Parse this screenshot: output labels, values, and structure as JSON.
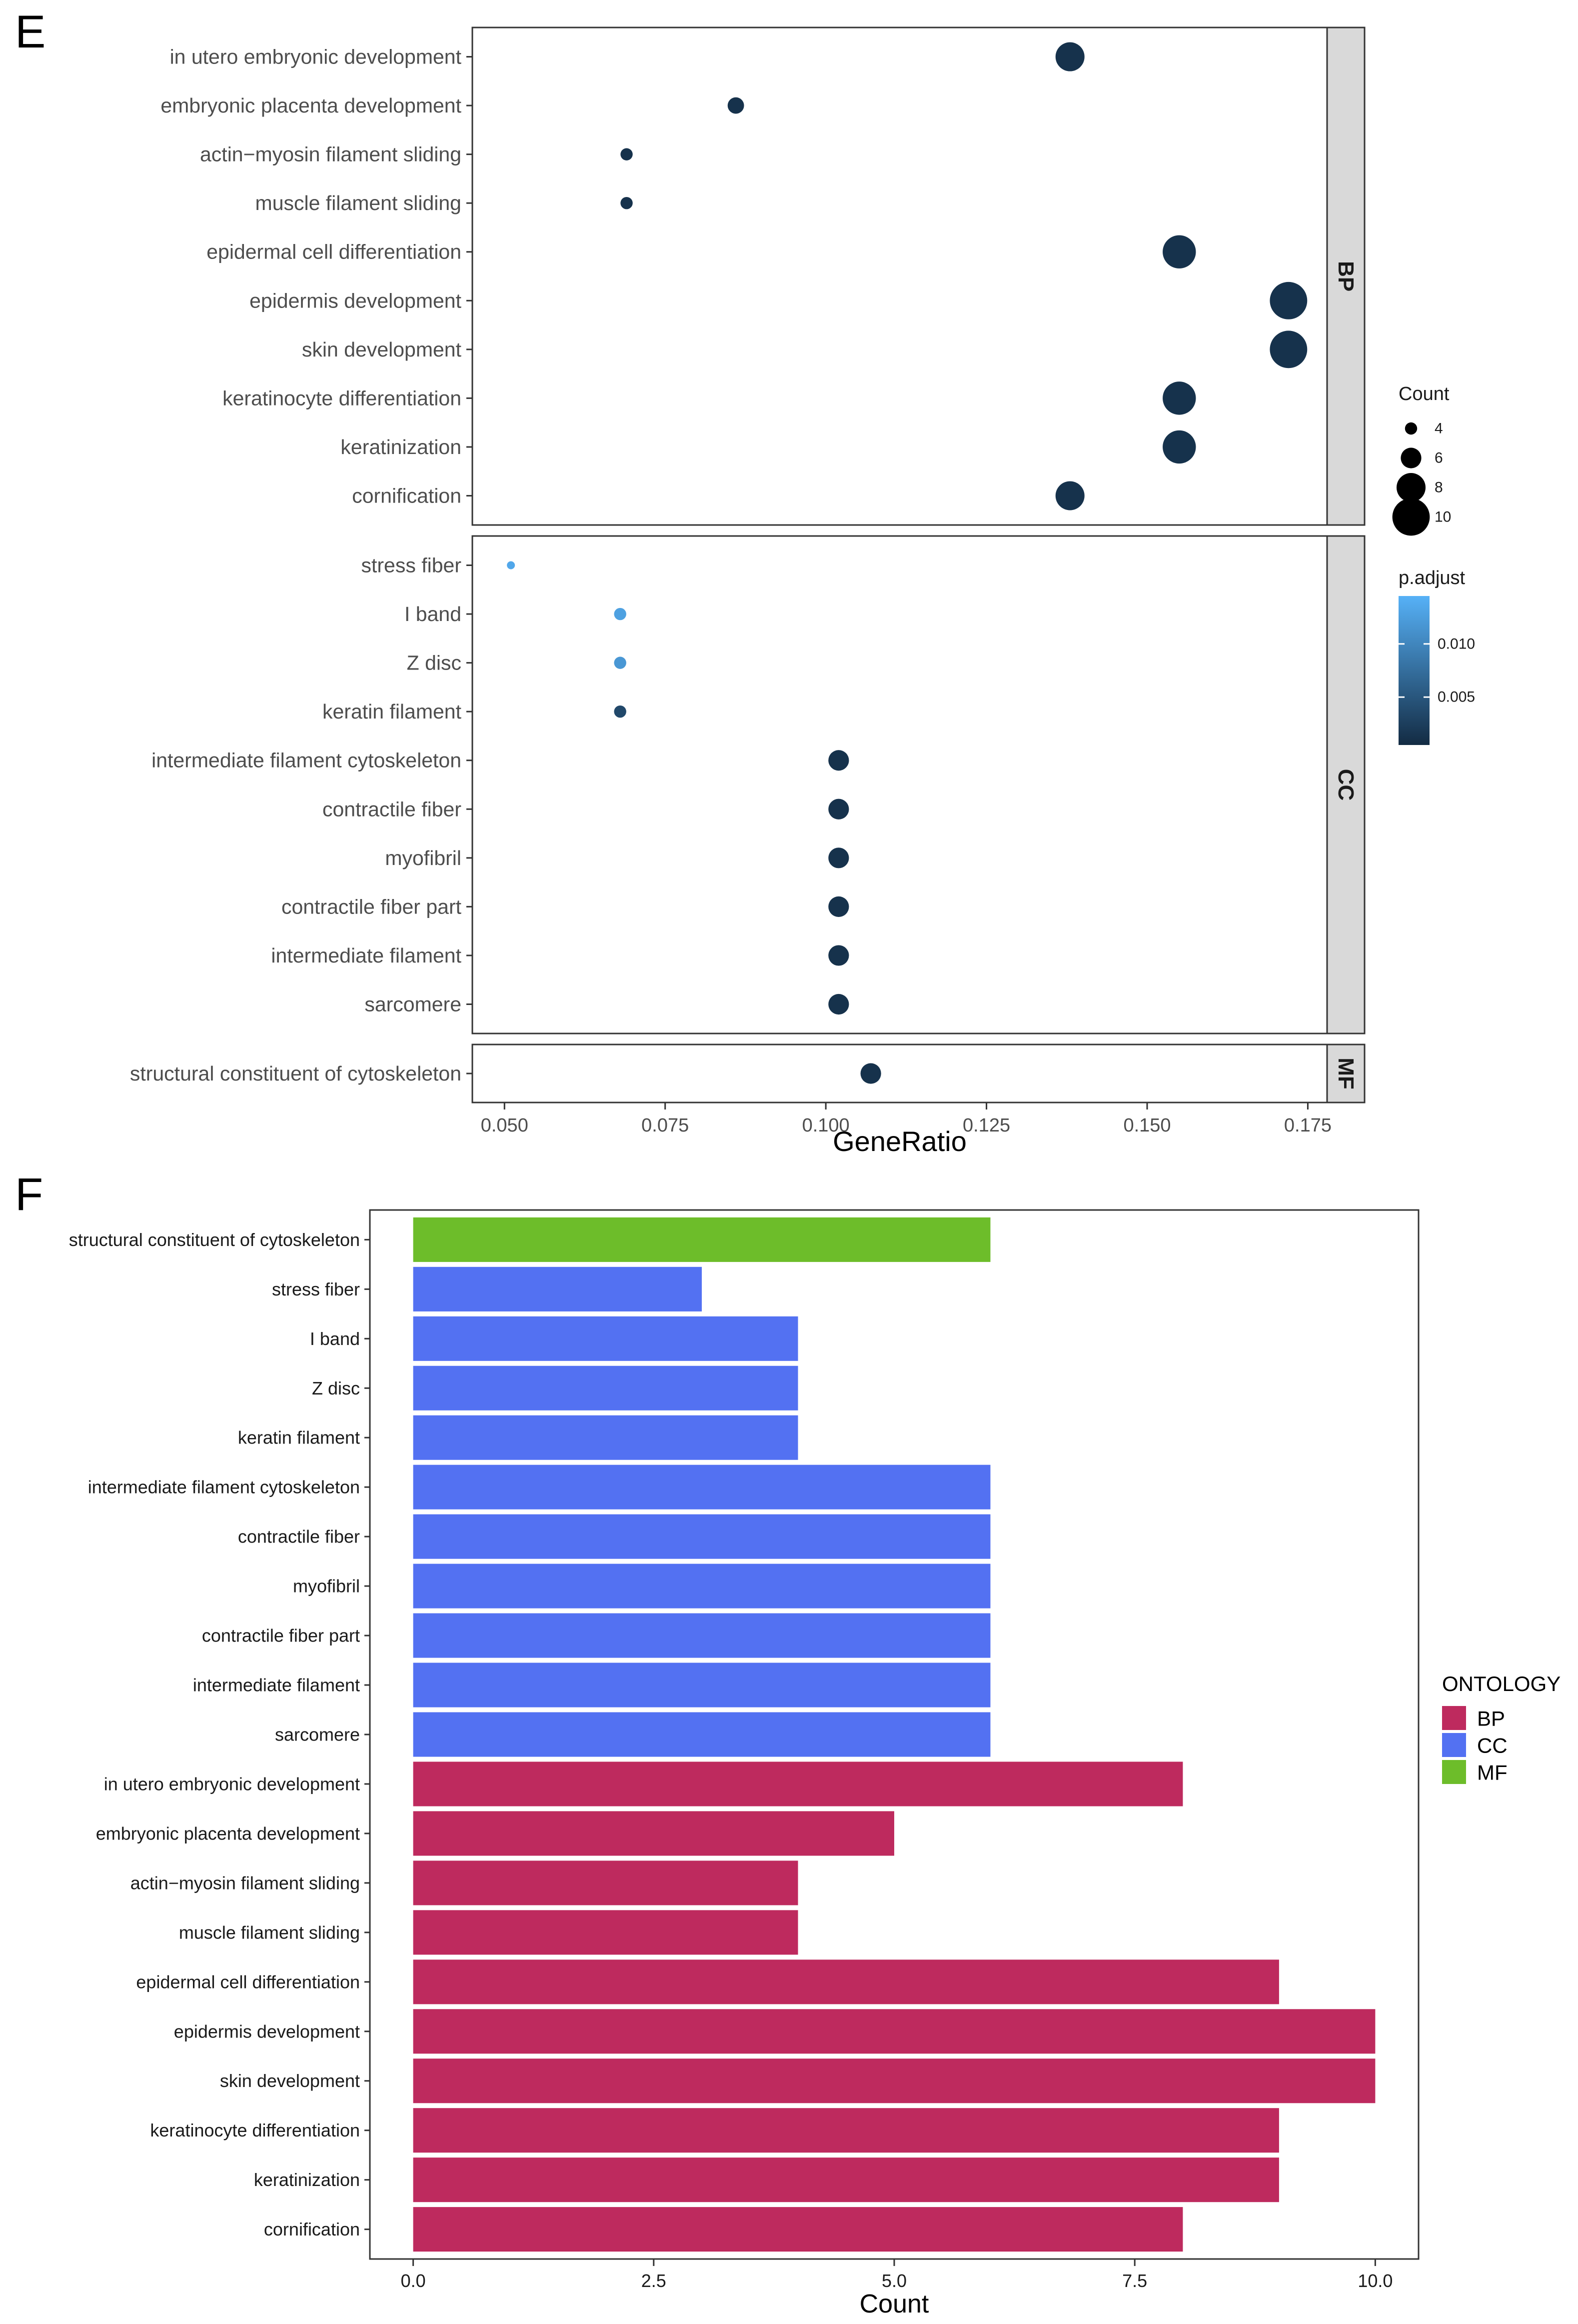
{
  "figure": {
    "panel_e_letter": "E",
    "panel_f_letter": "F"
  },
  "chart_data": [
    {
      "type": "scatter",
      "panel": "E",
      "title": "",
      "xlabel": "GeneRatio",
      "ylabel": "",
      "xlim": [
        0.045,
        0.178
      ],
      "x_ticks": [
        "0.050",
        "0.075",
        "0.100",
        "0.125",
        "0.150",
        "0.175"
      ],
      "grid": false,
      "facets": [
        {
          "name": "BP",
          "terms": [
            {
              "label": "in utero embryonic development",
              "gene_ratio": 0.138,
              "count": 8,
              "p_adjust": 0.0012
            },
            {
              "label": "embryonic placenta development",
              "gene_ratio": 0.086,
              "count": 5,
              "p_adjust": 0.0012
            },
            {
              "label": "actin−myosin filament sliding",
              "gene_ratio": 0.069,
              "count": 4,
              "p_adjust": 0.0012
            },
            {
              "label": "muscle filament sliding",
              "gene_ratio": 0.069,
              "count": 4,
              "p_adjust": 0.0012
            },
            {
              "label": "epidermal cell differentiation",
              "gene_ratio": 0.155,
              "count": 9,
              "p_adjust": 0.0012
            },
            {
              "label": "epidermis development",
              "gene_ratio": 0.172,
              "count": 10,
              "p_adjust": 0.0012
            },
            {
              "label": "skin development",
              "gene_ratio": 0.172,
              "count": 10,
              "p_adjust": 0.0012
            },
            {
              "label": "keratinocyte differentiation",
              "gene_ratio": 0.155,
              "count": 9,
              "p_adjust": 0.0012
            },
            {
              "label": "keratinization",
              "gene_ratio": 0.155,
              "count": 9,
              "p_adjust": 0.0012
            },
            {
              "label": "cornification",
              "gene_ratio": 0.138,
              "count": 8,
              "p_adjust": 0.0012
            }
          ]
        },
        {
          "name": "CC",
          "terms": [
            {
              "label": "stress fiber",
              "gene_ratio": 0.051,
              "count": 3,
              "p_adjust": 0.0135
            },
            {
              "label": "I band",
              "gene_ratio": 0.068,
              "count": 4,
              "p_adjust": 0.0128
            },
            {
              "label": "Z disc",
              "gene_ratio": 0.068,
              "count": 4,
              "p_adjust": 0.0118
            },
            {
              "label": "keratin filament",
              "gene_ratio": 0.068,
              "count": 4,
              "p_adjust": 0.0035
            },
            {
              "label": "intermediate filament cytoskeleton",
              "gene_ratio": 0.102,
              "count": 6,
              "p_adjust": 0.0012
            },
            {
              "label": "contractile fiber",
              "gene_ratio": 0.102,
              "count": 6,
              "p_adjust": 0.0012
            },
            {
              "label": "myofibril",
              "gene_ratio": 0.102,
              "count": 6,
              "p_adjust": 0.0012
            },
            {
              "label": "contractile fiber part",
              "gene_ratio": 0.102,
              "count": 6,
              "p_adjust": 0.0012
            },
            {
              "label": "intermediate filament",
              "gene_ratio": 0.102,
              "count": 6,
              "p_adjust": 0.0012
            },
            {
              "label": "sarcomere",
              "gene_ratio": 0.102,
              "count": 6,
              "p_adjust": 0.0012
            }
          ]
        },
        {
          "name": "MF",
          "terms": [
            {
              "label": "structural constituent of cytoskeleton",
              "gene_ratio": 0.107,
              "count": 6,
              "p_adjust": 0.0012
            }
          ]
        }
      ],
      "size_legend": {
        "title": "Count",
        "entries": [
          {
            "label": "4",
            "value": 4
          },
          {
            "label": "6",
            "value": 6
          },
          {
            "label": "8",
            "value": 8
          },
          {
            "label": "10",
            "value": 10
          }
        ]
      },
      "color_legend": {
        "title": "p.adjust",
        "range": [
          0.0005,
          0.0145
        ],
        "low_color": "#132B43",
        "high_color": "#56B1F7",
        "ticks": [
          {
            "label": "0.010",
            "value": 0.01
          },
          {
            "label": "0.005",
            "value": 0.005
          }
        ]
      }
    },
    {
      "type": "bar",
      "orientation": "horizontal",
      "panel": "F",
      "title": "",
      "xlabel": "Count",
      "ylabel": "",
      "xlim": [
        -0.45,
        10.45
      ],
      "x_ticks": [
        {
          "label": "0.0",
          "value": 0
        },
        {
          "label": "2.5",
          "value": 2.5
        },
        {
          "label": "5.0",
          "value": 5
        },
        {
          "label": "7.5",
          "value": 7.5
        },
        {
          "label": "10.0",
          "value": 10
        }
      ],
      "grid": false,
      "categories": [
        "structural constituent of cytoskeleton",
        "stress fiber",
        "I band",
        "Z disc",
        "keratin filament",
        "intermediate filament cytoskeleton",
        "contractile fiber",
        "myofibril",
        "contractile fiber part",
        "intermediate filament",
        "sarcomere",
        "in utero embryonic development",
        "embryonic placenta development",
        "actin−myosin filament sliding",
        "muscle filament sliding",
        "epidermal cell differentiation",
        "epidermis development",
        "skin development",
        "keratinocyte differentiation",
        "keratinization",
        "cornification"
      ],
      "values": [
        6,
        3,
        4,
        4,
        4,
        6,
        6,
        6,
        6,
        6,
        6,
        8,
        5,
        4,
        4,
        9,
        10,
        10,
        9,
        9,
        8
      ],
      "groups": [
        "MF",
        "CC",
        "CC",
        "CC",
        "CC",
        "CC",
        "CC",
        "CC",
        "CC",
        "CC",
        "CC",
        "BP",
        "BP",
        "BP",
        "BP",
        "BP",
        "BP",
        "BP",
        "BP",
        "BP",
        "BP"
      ],
      "legend": {
        "title": "ONTOLOGY",
        "position": "right",
        "entries": [
          {
            "label": "BP",
            "color": "#BE2A5E"
          },
          {
            "label": "CC",
            "color": "#5371F2"
          },
          {
            "label": "MF",
            "color": "#6DBD2A"
          }
        ]
      }
    }
  ]
}
